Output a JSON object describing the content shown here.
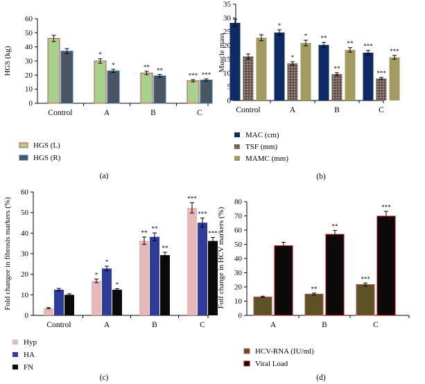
{
  "chart_data": [
    {
      "type": "bar",
      "panel_label": "(a)",
      "ylabel": "HGS (kg)",
      "ylim": [
        0,
        60
      ],
      "yticks": [
        "0",
        "10",
        "20",
        "30",
        "40",
        "50",
        "60"
      ],
      "categories": [
        "Control",
        "A",
        "B",
        "C"
      ],
      "series": [
        {
          "name": "HGS (L)",
          "color": "#a9d18e",
          "edge": "#c0504d",
          "values": [
            46,
            30,
            21.5,
            16
          ],
          "errors": [
            2.2,
            1.6,
            1.2,
            0.8
          ],
          "sig": [
            "",
            "*",
            "**",
            "***"
          ]
        },
        {
          "name": "HGS (R)",
          "color": "#4a5560",
          "edge": "#2e75b6",
          "values": [
            37,
            23,
            19.5,
            16.5
          ],
          "errors": [
            1.8,
            1.1,
            1.0,
            0.8
          ],
          "sig": [
            "",
            "*",
            "**",
            "***"
          ]
        }
      ],
      "legend": "bottom-left"
    },
    {
      "type": "bar",
      "panel_label": "(b)",
      "ylabel": "Muscle mass",
      "ylim": [
        0,
        35
      ],
      "yticks": [
        "0",
        "5",
        "10",
        "15",
        "20",
        "25",
        "30",
        "35"
      ],
      "categories": [
        "Control",
        "A",
        "B",
        "C"
      ],
      "series": [
        {
          "name": "MAC (cm)",
          "color": "#0d2c66",
          "values": [
            28.2,
            24.7,
            20.2,
            17.4
          ],
          "errors": [
            1.3,
            1.0,
            0.9,
            0.8
          ],
          "sig": [
            "",
            "*",
            "**",
            "***"
          ]
        },
        {
          "name": "TSF (mm)",
          "color": "#6b5a55",
          "pattern": true,
          "values": [
            16,
            13.5,
            9.6,
            8
          ],
          "errors": [
            0.9,
            0.6,
            0.5,
            0.4
          ],
          "sig": [
            "",
            "*",
            "**",
            "***"
          ]
        },
        {
          "name": "MAMC (mm)",
          "color": "#a39a62",
          "values": [
            22.8,
            20.9,
            18.4,
            15.7
          ],
          "errors": [
            1.1,
            1.0,
            0.8,
            0.7
          ],
          "sig": [
            "",
            "*",
            "**",
            "***"
          ]
        }
      ],
      "legend": "bottom-left"
    },
    {
      "type": "bar",
      "panel_label": "(c)",
      "ylabel": "Fold changee in fibrosis markers (%)",
      "ylim": [
        0,
        60
      ],
      "yticks": [
        "0",
        "10",
        "20",
        "30",
        "40",
        "50",
        "60"
      ],
      "categories": [
        "Control",
        "A",
        "B",
        "C"
      ],
      "series": [
        {
          "name": "Hyp",
          "color": "#e6b9b8",
          "values": [
            3.5,
            16.8,
            36.3,
            52.3
          ],
          "errors": [
            0.3,
            0.9,
            1.8,
            2.5
          ],
          "sig": [
            "",
            "*",
            "**",
            "***"
          ]
        },
        {
          "name": "HA",
          "color": "#2e3d9c",
          "values": [
            12.5,
            22.8,
            38.2,
            45.1
          ],
          "errors": [
            0.6,
            1.1,
            1.9,
            2.2
          ],
          "sig": [
            "",
            "*",
            "**",
            "***"
          ]
        },
        {
          "name": "FN",
          "color": "#0a0a0a",
          "values": [
            10,
            12.5,
            29.3,
            36.2
          ],
          "errors": [
            0.5,
            0.5,
            1.4,
            1.7
          ],
          "sig": [
            "",
            "*",
            "**",
            "***"
          ]
        }
      ],
      "legend": "bottom-left"
    },
    {
      "type": "bar",
      "panel_label": "(d)",
      "ylabel": "Folf change in HCV markers (%)",
      "ylim": [
        0,
        80
      ],
      "yticks": [
        "0",
        "10",
        "20",
        "30",
        "40",
        "50",
        "60",
        "70",
        "80"
      ],
      "categories": [
        "A",
        "B",
        "C"
      ],
      "series": [
        {
          "name": "HCV-RNA (IU/ml)",
          "color": "#5b5326",
          "edge": "#c0504d",
          "values": [
            13,
            15,
            21.7
          ],
          "errors": [
            0.5,
            0.7,
            1.1
          ],
          "sig": [
            "",
            "**",
            "***"
          ]
        },
        {
          "name": "Viral Load",
          "color": "#0a0a0a",
          "edge": "#c00000",
          "values": [
            49,
            57,
            69.8
          ],
          "errors": [
            2.4,
            2.8,
            3.4
          ],
          "sig": [
            "",
            "**",
            "***"
          ]
        }
      ],
      "legend": "bottom-left"
    }
  ]
}
